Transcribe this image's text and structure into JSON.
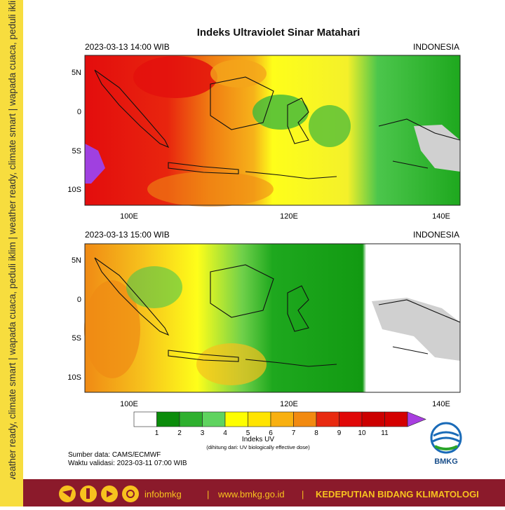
{
  "sidebar_text": "weather ready, climate smart | wapada cuaca, peduli iklim | weather ready, climate smart | wapada cuaca, peduli iklim | weather ready, climate smart | wapada cuaca, peduli iklim",
  "title": "Indeks Ultraviolet Sinar Matahari",
  "maps": [
    {
      "time": "2023-03-13  14:00 WIB",
      "region": "INDONESIA",
      "lat_labels": [
        "5N",
        "0",
        "5S",
        "10S"
      ],
      "lon_labels": [
        "100E",
        "120E",
        "140E"
      ]
    },
    {
      "time": "2023-03-13  15:00 WIB",
      "region": "INDONESIA",
      "lat_labels": [
        "5N",
        "0",
        "5S",
        "10S"
      ],
      "lon_labels": [
        "100E",
        "120E",
        "140E"
      ]
    }
  ],
  "legend": {
    "ticks": [
      "1",
      "2",
      "3",
      "4",
      "5",
      "6",
      "7",
      "8",
      "9",
      "10",
      "11"
    ],
    "title": "Indeks UV",
    "note": "(dihitung dari: UV biologically effective dose)"
  },
  "source": "Sumber data: CAMS/ECMWF",
  "validity": "Waktu validasi: 2023-03-11 07:00 WIB",
  "logo": "BMKG",
  "footer": {
    "handle": "infobmkg",
    "separator": "|",
    "url": "www.bmkg.go.id",
    "department": "KEDEPUTIAN BIDANG KLIMATOLOGI"
  }
}
